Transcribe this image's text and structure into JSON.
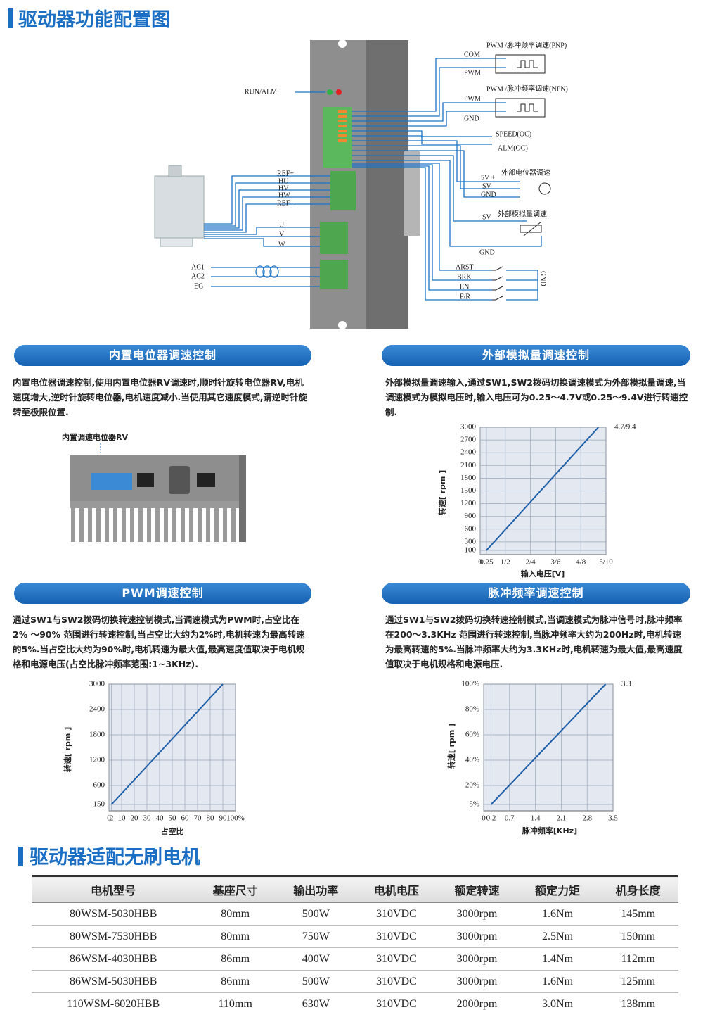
{
  "header": {
    "title": "驱动器功能配置图"
  },
  "diagram": {
    "labels": [
      "RUN/ALM",
      "PWM /脉冲频率调速(PNP)",
      "COM",
      "PWM",
      "PWM /脉冲频率调速(NPN)",
      "PWM",
      "GND",
      "SPEED(OC)",
      "ALM(OC)",
      "外部电位器调速",
      "5V +",
      "SV",
      "GND",
      "SV",
      "外部模拟量调速",
      "GND",
      "ARST",
      "BRK",
      "EN",
      "F/R",
      "GND",
      "REF+",
      "HU",
      "HV",
      "HW",
      "REF−",
      "U",
      "V",
      "W",
      "AC1",
      "AC2",
      "EG"
    ]
  },
  "sections": [
    {
      "title": "内置电位器调速控制",
      "text": "内置电位器调速控制,使用内置电位器RV调速时,顺时针旋转电位器RV,电机速度增大,逆时针旋转电位器,电机速度减小.当使用其它速度模式,请逆时针旋转至极限位置."
    },
    {
      "title": "外部模拟量调速控制",
      "text": "外部模拟量调速输入,通过SW1,SW2拨码切换调速模式为外部模拟量调速,当调速模式为模拟电压时,输入电压可为0.25～4.7V或0.25～9.4V进行转速控制."
    },
    {
      "title": "PWM调速控制",
      "text": "通过SW1与SW2拨码切换转速控制模式,当调速模式为PWM时,占空比在2% ～90% 范围进行转速控制,当占空比大约为2%时,电机转速为最高转速的5%.当占空比大约为90%时,电机转速为最大值,最高速度值取决于电机规格和电源电压(占空比脉冲频率范围:1~3KHz)."
    },
    {
      "title": "脉冲频率调速控制",
      "text": "通过SW1与SW2拨码切换转速控制模式,当调速模式为脉冲信号时,脉冲频率在200～3.3KHz 范围进行转速控制,当脉冲频率大约为200Hz时,电机转速为最高转速的5%.当脉冲频率大约为3.3KHz时,电机转速为最大值,最高速度值取决于电机规格和电源电压."
    }
  ],
  "rv_label": "内置调速电位器RV",
  "chart_data": [
    {
      "type": "line",
      "x_label": "输入电压[V]",
      "y_label": "转速[ rpm ]",
      "annotation": "4.7/9.4",
      "xlim": [
        0,
        5
      ],
      "ylim": [
        0,
        3000
      ],
      "xticks": [
        0,
        0.25,
        {
          "value": 1,
          "label": "1/2"
        },
        {
          "value": 2,
          "label": "2/4"
        },
        {
          "value": 3,
          "label": "3/6"
        },
        {
          "value": 4,
          "label": "4/8"
        },
        {
          "value": 5,
          "label": "5/10"
        }
      ],
      "yticks": [
        100,
        300,
        600,
        900,
        1200,
        1500,
        1800,
        2100,
        2400,
        2700,
        3000
      ],
      "grid": true,
      "series": [
        {
          "color": "#1f5fa8",
          "x": [
            0.25,
            4.7
          ],
          "values": [
            100,
            3000
          ]
        }
      ]
    },
    {
      "type": "line",
      "x_label": "占空比",
      "y_label": "转速[ rpm ]",
      "xlim": [
        0,
        100
      ],
      "ylim": [
        0,
        3000
      ],
      "xticks": [
        0,
        2,
        10,
        20,
        30,
        40,
        50,
        60,
        70,
        80,
        90,
        {
          "value": 100,
          "label": "100%"
        }
      ],
      "yticks": [
        150,
        600,
        1200,
        1800,
        2400,
        3000
      ],
      "grid": true,
      "series": [
        {
          "color": "#1f5fa8",
          "x": [
            2,
            90
          ],
          "values": [
            150,
            3000
          ]
        }
      ]
    },
    {
      "type": "line",
      "x_label": "脉冲频率[KHz]",
      "y_label": "转速[ rpm ]",
      "annotation": "3.3",
      "xlim": [
        0,
        3.5
      ],
      "ylim": [
        0,
        100
      ],
      "xticks": [
        0,
        0.2,
        0.7,
        1.4,
        2.1,
        2.8,
        3.5
      ],
      "yticks": [
        {
          "value": 5,
          "label": "5%"
        },
        {
          "value": 20,
          "label": "20%"
        },
        {
          "value": 40,
          "label": "40%"
        },
        {
          "value": 60,
          "label": "60%"
        },
        {
          "value": 80,
          "label": "80%"
        },
        {
          "value": 100,
          "label": "100%"
        }
      ],
      "grid": true,
      "series": [
        {
          "color": "#1f5fa8",
          "x": [
            0.2,
            3.3
          ],
          "values": [
            5,
            100
          ]
        }
      ]
    }
  ],
  "motor_section": {
    "title": "驱动器适配无刷电机"
  },
  "table": {
    "columns": [
      "电机型号",
      "基座尺寸",
      "输出功率",
      "电机电压",
      "额定转速",
      "额定力矩",
      "机身长度"
    ],
    "rows": [
      [
        "80WSM-5030HBB",
        "80mm",
        "500W",
        "310VDC",
        "3000rpm",
        "1.6Nm",
        "145mm"
      ],
      [
        "80WSM-7530HBB",
        "80mm",
        "750W",
        "310VDC",
        "3000rpm",
        "2.5Nm",
        "150mm"
      ],
      [
        "86WSM-4030HBB",
        "86mm",
        "400W",
        "310VDC",
        "3000rpm",
        "1.4Nm",
        "112mm"
      ],
      [
        "86WSM-5030HBB",
        "86mm",
        "500W",
        "310VDC",
        "3000rpm",
        "1.6Nm",
        "125mm"
      ],
      [
        "110WSM-6020HBB",
        "110mm",
        "630W",
        "310VDC",
        "2000rpm",
        "3.0Nm",
        "138mm"
      ]
    ]
  }
}
